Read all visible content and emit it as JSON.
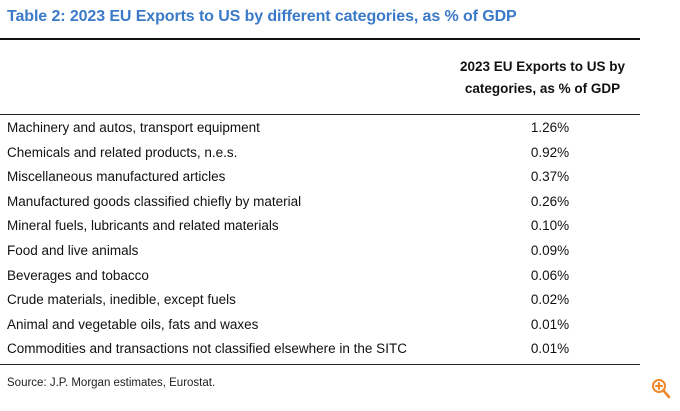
{
  "title": "Table 2: 2023 EU Exports to US by different categories, as % of GDP",
  "column_header": {
    "line1": "2023 EU Exports to US by",
    "line2": "categories, as % of GDP"
  },
  "rows": [
    {
      "category": "Machinery and autos, transport equipment",
      "value": "1.26%"
    },
    {
      "category": "Chemicals and related products, n.e.s.",
      "value": "0.92%"
    },
    {
      "category": "Miscellaneous manufactured articles",
      "value": "0.37%"
    },
    {
      "category": "Manufactured goods classified chiefly by material",
      "value": "0.26%"
    },
    {
      "category": "Mineral fuels, lubricants and related materials",
      "value": "0.10%"
    },
    {
      "category": "Food and live animals",
      "value": "0.09%"
    },
    {
      "category": "Beverages and tobacco",
      "value": "0.06%"
    },
    {
      "category": "Crude materials, inedible, except fuels",
      "value": "0.02%"
    },
    {
      "category": "Animal and vegetable oils, fats and waxes",
      "value": "0.01%"
    },
    {
      "category": "Commodities and transactions not classified elsewhere in the SITC",
      "value": "0.01%"
    }
  ],
  "source": "Source: J.P. Morgan estimates, Eurostat.",
  "icons": {
    "zoom": "zoom-in-icon"
  },
  "colors": {
    "title": "#3a7ac8",
    "zoom_icon": "#f0872a"
  }
}
